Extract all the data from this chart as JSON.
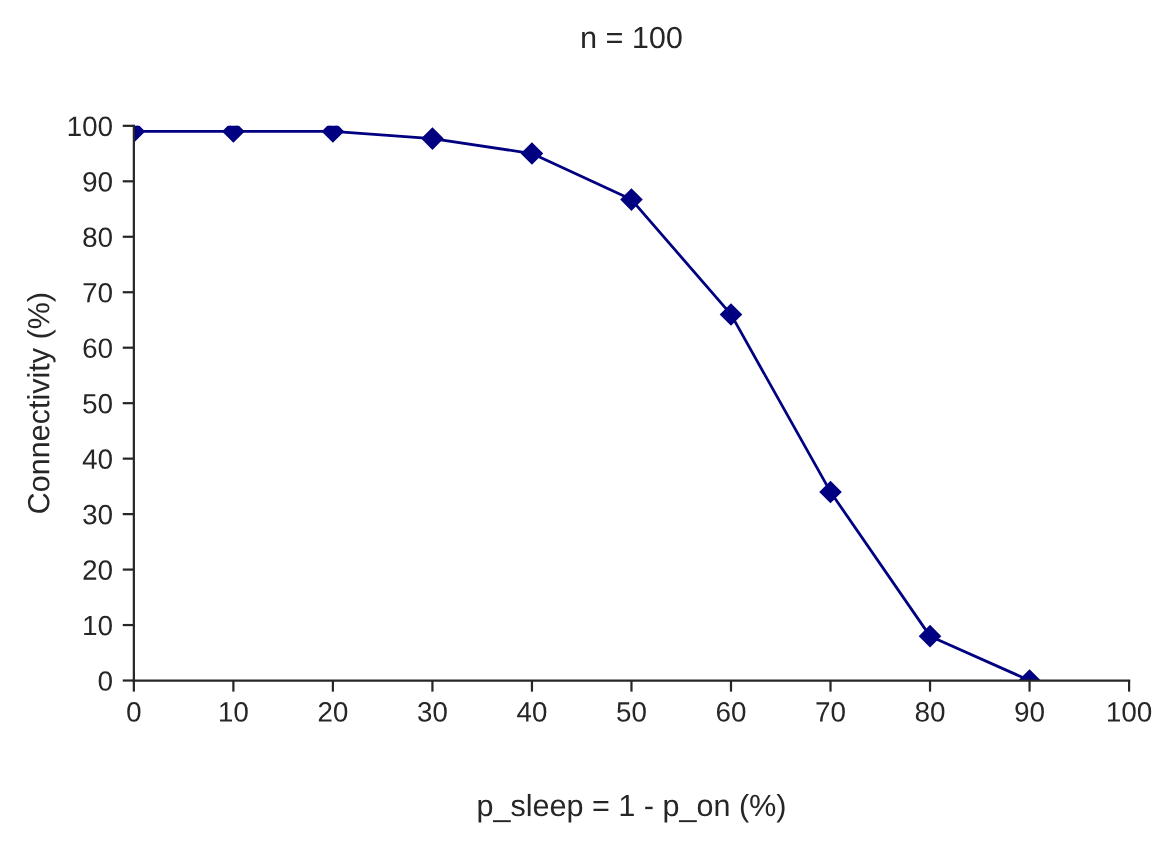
{
  "chart_data": {
    "type": "line",
    "title": "n = 100",
    "xlabel": "p_sleep = 1 - p_on (%)",
    "ylabel": "Connectivity (%)",
    "x": [
      0,
      10,
      20,
      30,
      40,
      50,
      60,
      70,
      80,
      90
    ],
    "series": [
      {
        "color": "#000080",
        "values": [
          99,
          99,
          99,
          97.7,
          95,
          86.7,
          66,
          34,
          8,
          0
        ]
      }
    ],
    "xlim": [
      0,
      100
    ],
    "xticks": [
      0,
      10,
      20,
      30,
      40,
      50,
      60,
      70,
      80,
      90,
      100
    ],
    "ylim": [
      0,
      100
    ],
    "yticks": [
      0,
      10,
      20,
      30,
      40,
      50,
      60,
      70,
      80,
      90,
      100
    ],
    "marker": "diamond",
    "line_style": "solid",
    "grid": false,
    "legend": false
  }
}
